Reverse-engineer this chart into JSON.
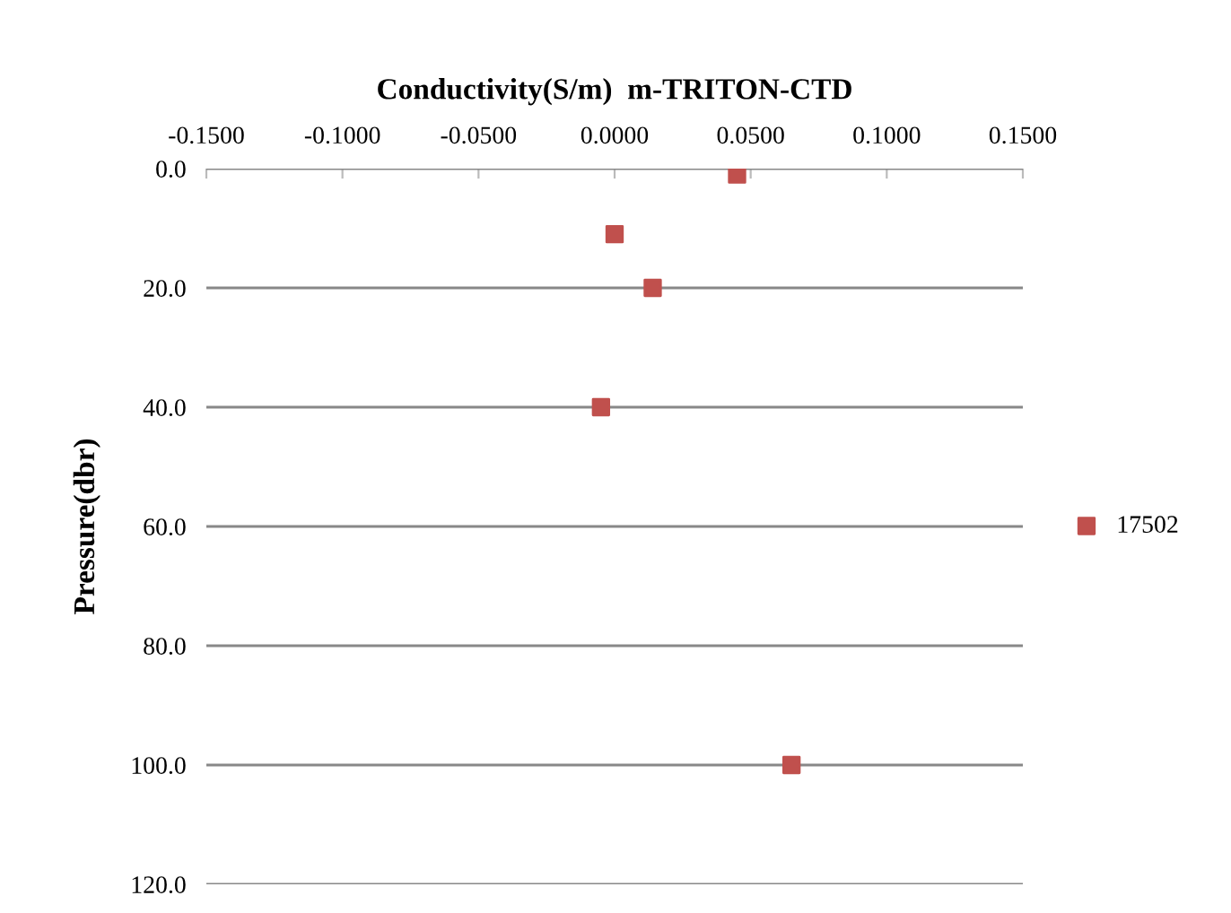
{
  "chart_data": {
    "type": "scatter",
    "title": "Conductivity(S/m)  m-TRITON-CTD",
    "ylabel": "Pressure(dbr)",
    "series": [
      {
        "name": "17502",
        "color": "#c0504d",
        "x": [
          0.045,
          0.0,
          0.014,
          -0.005,
          0.065
        ],
        "values": [
          1.0,
          11.0,
          20.0,
          40.0,
          100.0
        ]
      }
    ],
    "xlim": [
      -0.15,
      0.15
    ],
    "xticks": [
      {
        "value": -0.15,
        "label": "-0.1500"
      },
      {
        "value": -0.1,
        "label": "-0.1000"
      },
      {
        "value": -0.05,
        "label": "-0.0500"
      },
      {
        "value": 0,
        "label": "0.0000"
      },
      {
        "value": 0.05,
        "label": "0.0500"
      },
      {
        "value": 0.1,
        "label": "0.1000"
      },
      {
        "value": 0.15,
        "label": "0.1500"
      }
    ],
    "ylim": [
      120,
      0
    ],
    "yticks": [
      {
        "value": 0,
        "label": "0.0"
      },
      {
        "value": 20,
        "label": "20.0"
      },
      {
        "value": 40,
        "label": "40.0"
      },
      {
        "value": 60,
        "label": "60.0"
      },
      {
        "value": 80,
        "label": "80.0"
      },
      {
        "value": 100,
        "label": "100.0"
      },
      {
        "value": 120,
        "label": "120.0"
      }
    ],
    "grid": "y",
    "legend": "right",
    "marker": "square"
  }
}
